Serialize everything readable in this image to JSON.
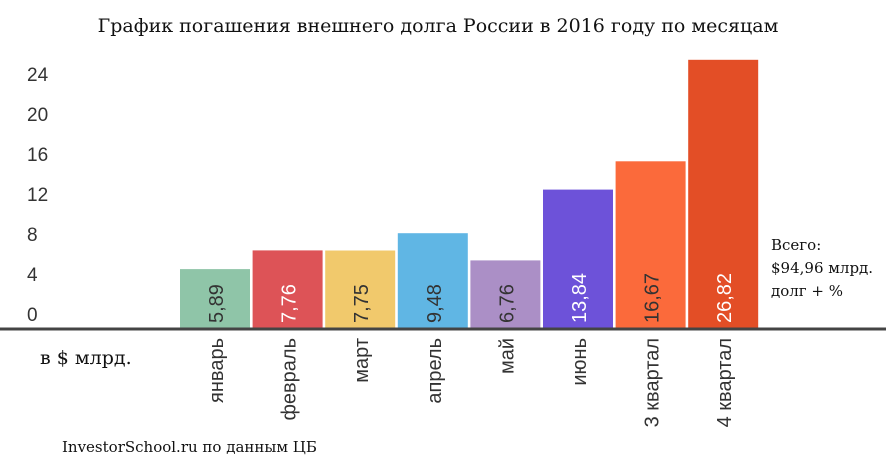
{
  "chart_data": {
    "type": "bar",
    "title": "График погашения внешнего долга России в 2016 году по месяцам",
    "ylabel": "в $ млрд.",
    "xlabel": "",
    "ylim": [
      0,
      26.82
    ],
    "yticks": [
      0,
      4,
      8,
      12,
      16,
      20,
      24
    ],
    "ytick_labels": [
      "0",
      "4",
      "8",
      "12",
      "16",
      "20",
      "24"
    ],
    "grid": false,
    "categories": [
      "январь",
      "февраль",
      "март",
      "апрель",
      "май",
      "июнь",
      "3 квартал",
      "4 квартал"
    ],
    "values": [
      5.89,
      7.76,
      7.75,
      9.48,
      6.76,
      13.84,
      16.67,
      26.82
    ],
    "data_labels": [
      "5,89",
      "7,76",
      "7,75",
      "9,48",
      "6,76",
      "13,84",
      "16,67",
      "26,82"
    ],
    "colors": [
      "#8fc5a8",
      "#dd5357",
      "#f1c96c",
      "#60b6e4",
      "#ab8fc6",
      "#6d52d9",
      "#fb6a3b",
      "#e34e26"
    ],
    "label_colors": [
      "#333333",
      "#ffffff",
      "#333333",
      "#333333",
      "#333333",
      "#ffffff",
      "#333333",
      "#ffffff"
    ],
    "annotation": [
      "Всего:",
      "$94,96 млрд.",
      "долг + %"
    ],
    "source": "InvestorSchool.ru по данным ЦБ"
  }
}
